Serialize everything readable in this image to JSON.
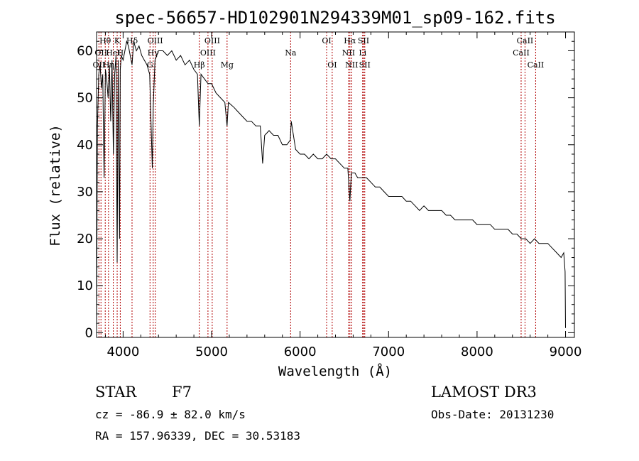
{
  "chart_data": {
    "type": "line",
    "title": "spec-56657-HD102901N294339M01_sp09-162.fits",
    "xlabel": "Wavelength (Å)",
    "ylabel": "Flux (relative)",
    "xlim": [
      3700,
      9100
    ],
    "ylim": [
      -1,
      64
    ],
    "xticks": [
      4000,
      5000,
      6000,
      7000,
      8000,
      9000
    ],
    "yticks": [
      0,
      10,
      20,
      30,
      40,
      50,
      60
    ],
    "series": [
      {
        "name": "spectrum",
        "x": [
          3700,
          3710,
          3725,
          3740,
          3755,
          3770,
          3785,
          3800,
          3815,
          3830,
          3845,
          3860,
          3875,
          3890,
          3905,
          3920,
          3933,
          3945,
          3960,
          3968,
          3980,
          4000,
          4020,
          4040,
          4060,
          4080,
          4101,
          4120,
          4150,
          4180,
          4210,
          4240,
          4270,
          4300,
          4330,
          4340,
          4360,
          4400,
          4450,
          4500,
          4550,
          4600,
          4650,
          4700,
          4750,
          4800,
          4840,
          4861,
          4880,
          4920,
          4960,
          5000,
          5050,
          5100,
          5150,
          5175,
          5190,
          5250,
          5300,
          5350,
          5400,
          5450,
          5500,
          5550,
          5577,
          5600,
          5650,
          5700,
          5750,
          5800,
          5850,
          5890,
          5900,
          5950,
          6000,
          6050,
          6100,
          6150,
          6200,
          6250,
          6300,
          6350,
          6400,
          6450,
          6500,
          6540,
          6563,
          6580,
          6620,
          6650,
          6700,
          6750,
          6800,
          6850,
          6900,
          6950,
          7000,
          7050,
          7100,
          7150,
          7200,
          7250,
          7300,
          7350,
          7400,
          7450,
          7500,
          7550,
          7600,
          7650,
          7700,
          7750,
          7800,
          7850,
          7900,
          7950,
          8000,
          8050,
          8100,
          8150,
          8200,
          8250,
          8300,
          8350,
          8400,
          8450,
          8500,
          8550,
          8600,
          8650,
          8700,
          8750,
          8800,
          8850,
          8900,
          8950,
          8980,
          8995,
          9000
        ],
        "y": [
          0,
          44,
          55,
          57,
          52,
          55,
          33,
          56,
          54,
          50,
          57,
          45,
          58,
          38,
          55,
          59,
          15,
          58,
          20,
          56,
          59,
          58,
          60,
          62,
          61,
          59,
          57,
          62,
          60,
          61,
          59,
          58,
          57,
          55,
          35,
          48,
          58,
          60,
          60,
          59,
          60,
          58,
          59,
          57,
          58,
          56,
          55,
          44,
          55,
          54,
          53,
          53,
          51,
          50,
          49,
          44,
          49,
          48,
          47,
          46,
          45,
          45,
          44,
          44,
          36,
          42,
          43,
          42,
          42,
          40,
          40,
          41,
          45,
          39,
          38,
          38,
          37,
          38,
          37,
          37,
          38,
          37,
          37,
          36,
          35,
          35,
          28,
          34,
          34,
          33,
          33,
          33,
          32,
          31,
          31,
          30,
          29,
          29,
          29,
          29,
          28,
          28,
          27,
          26,
          27,
          26,
          26,
          26,
          26,
          25,
          25,
          24,
          24,
          24,
          24,
          24,
          23,
          23,
          23,
          23,
          22,
          22,
          22,
          22,
          21,
          21,
          20,
          20,
          19,
          20,
          19,
          19,
          19,
          18,
          17,
          16,
          17,
          13,
          1
        ]
      }
    ],
    "lines": [
      {
        "wave": 3727,
        "label": "OII",
        "row": 2
      },
      {
        "wave": 3750,
        "label": "OII",
        "row": 1
      },
      {
        "wave": 3798,
        "label": "Hθ",
        "row": 0
      },
      {
        "wave": 3835,
        "label": "Hη",
        "row": 2
      },
      {
        "wave": 3889,
        "label": "HeI",
        "row": 1
      },
      {
        "wave": 3933,
        "label": "K",
        "row": 0
      },
      {
        "wave": 3968,
        "label": "H",
        "row": 1
      },
      {
        "wave": 4101,
        "label": "Hδ",
        "row": 0
      },
      {
        "wave": 4304,
        "label": "G",
        "row": 2
      },
      {
        "wave": 4340,
        "label": "Hγ",
        "row": 1
      },
      {
        "wave": 4363,
        "label": "OIII",
        "row": 0
      },
      {
        "wave": 4861,
        "label": "Hβ",
        "row": 2
      },
      {
        "wave": 4959,
        "label": "OIII",
        "row": 1
      },
      {
        "wave": 5007,
        "label": "OIII",
        "row": 0
      },
      {
        "wave": 5175,
        "label": "Mg",
        "row": 2
      },
      {
        "wave": 5893,
        "label": "Na",
        "row": 1
      },
      {
        "wave": 6300,
        "label": "OI",
        "row": 0
      },
      {
        "wave": 6363,
        "label": "OI",
        "row": 2
      },
      {
        "wave": 6548,
        "label": "NII",
        "row": 1
      },
      {
        "wave": 6563,
        "label": "Hα",
        "row": 0
      },
      {
        "wave": 6583,
        "label": "NII",
        "row": 2
      },
      {
        "wave": 6707,
        "label": "Li",
        "row": 1
      },
      {
        "wave": 6717,
        "label": "SII",
        "row": 0
      },
      {
        "wave": 6731,
        "label": "SII",
        "row": 2
      },
      {
        "wave": 8498,
        "label": "CaII",
        "row": 1
      },
      {
        "wave": 8542,
        "label": "CaII",
        "row": 0
      },
      {
        "wave": 8662,
        "label": "CaII",
        "row": 2
      }
    ]
  },
  "info": {
    "class": "STAR",
    "subclass": "F7",
    "survey": "LAMOST DR3",
    "cz": "cz = -86.9 ± 82.0 km/s",
    "obs_date": "Obs-Date: 20131230",
    "coords": "RA = 157.96339, DEC =  30.53183"
  },
  "colors": {
    "axis": "#000000",
    "line_marker": "#b00000",
    "spectrum": "#000000"
  }
}
